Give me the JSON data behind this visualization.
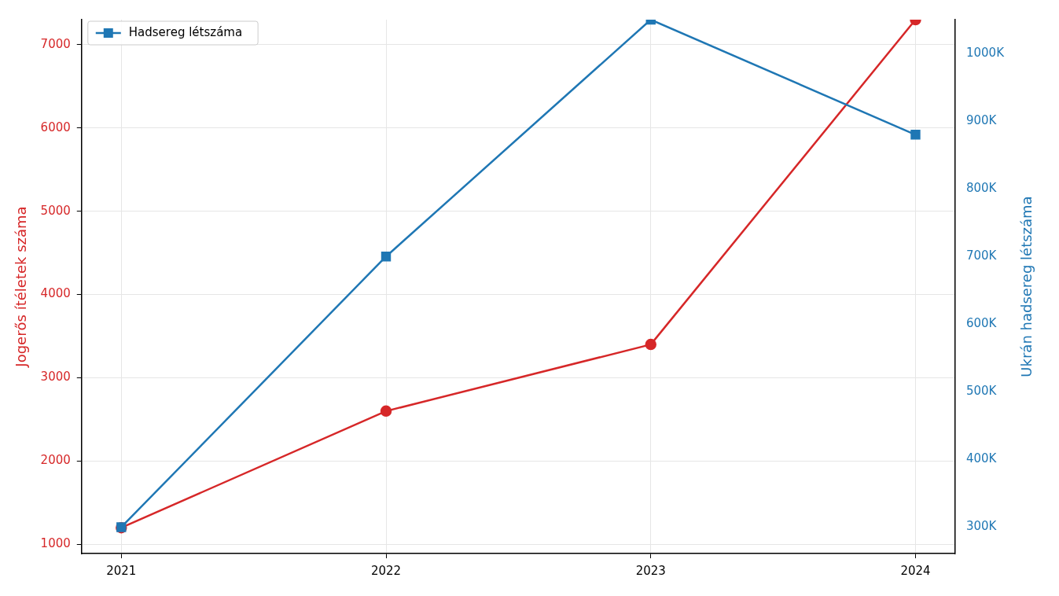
{
  "chart_data": {
    "type": "line",
    "ylabel": "Jogerős ítéletek száma",
    "y2label": "Ukrán hadsereg létszáma",
    "x": [
      2021,
      2022,
      2023,
      2024
    ],
    "xlim": [
      2020.85,
      2024.15
    ],
    "xticks": [
      2021,
      2022,
      2023,
      2024
    ],
    "ylim": [
      890,
      7300
    ],
    "yticks": [
      1000,
      2000,
      3000,
      4000,
      5000,
      6000,
      7000
    ],
    "y2lim": [
      261000,
      1050000
    ],
    "y2ticks": [
      {
        "value": 300000,
        "label": "300K"
      },
      {
        "value": 400000,
        "label": "400K"
      },
      {
        "value": 500000,
        "label": "500K"
      },
      {
        "value": 600000,
        "label": "600K"
      },
      {
        "value": 700000,
        "label": "700K"
      },
      {
        "value": 800000,
        "label": "800K"
      },
      {
        "value": 900000,
        "label": "900K"
      },
      {
        "value": 1000000,
        "label": "1000K"
      }
    ],
    "series": [
      {
        "color": "#d62728",
        "marker": "circle",
        "values": [
          1200,
          2600,
          3400,
          7300
        ]
      },
      {
        "name": "Hadsereg létszáma",
        "color": "#1f77b4",
        "marker": "square",
        "axis": "y2",
        "values": [
          300000,
          700000,
          1050000,
          880000
        ]
      }
    ],
    "grid": true,
    "legend": "top left"
  }
}
